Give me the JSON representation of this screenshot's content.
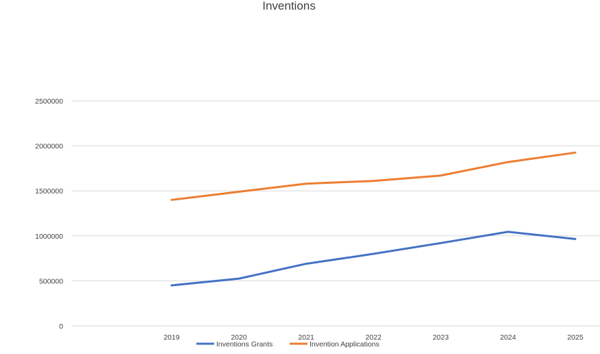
{
  "chart_data": {
    "type": "line",
    "title": "Inventions",
    "xlabel": "",
    "ylabel": "",
    "categories": [
      "2019",
      "2020",
      "2021",
      "2022",
      "2023",
      "2024",
      "2025"
    ],
    "yticks": [
      "0",
      "500000",
      "1000000",
      "1500000",
      "2000000",
      "2500000"
    ],
    "ylim": [
      0,
      2500000
    ],
    "grid": true,
    "legend_position": "bottom",
    "series": [
      {
        "name": "Inventions Grants",
        "color": "#4472C4",
        "values": [
          450000,
          525000,
          690000,
          800000,
          920000,
          1045000,
          965000
        ]
      },
      {
        "name": "Invention Applications",
        "color": "#ED7D31",
        "values": [
          1400000,
          1490000,
          1580000,
          1610000,
          1670000,
          1820000,
          1925000
        ]
      }
    ]
  }
}
